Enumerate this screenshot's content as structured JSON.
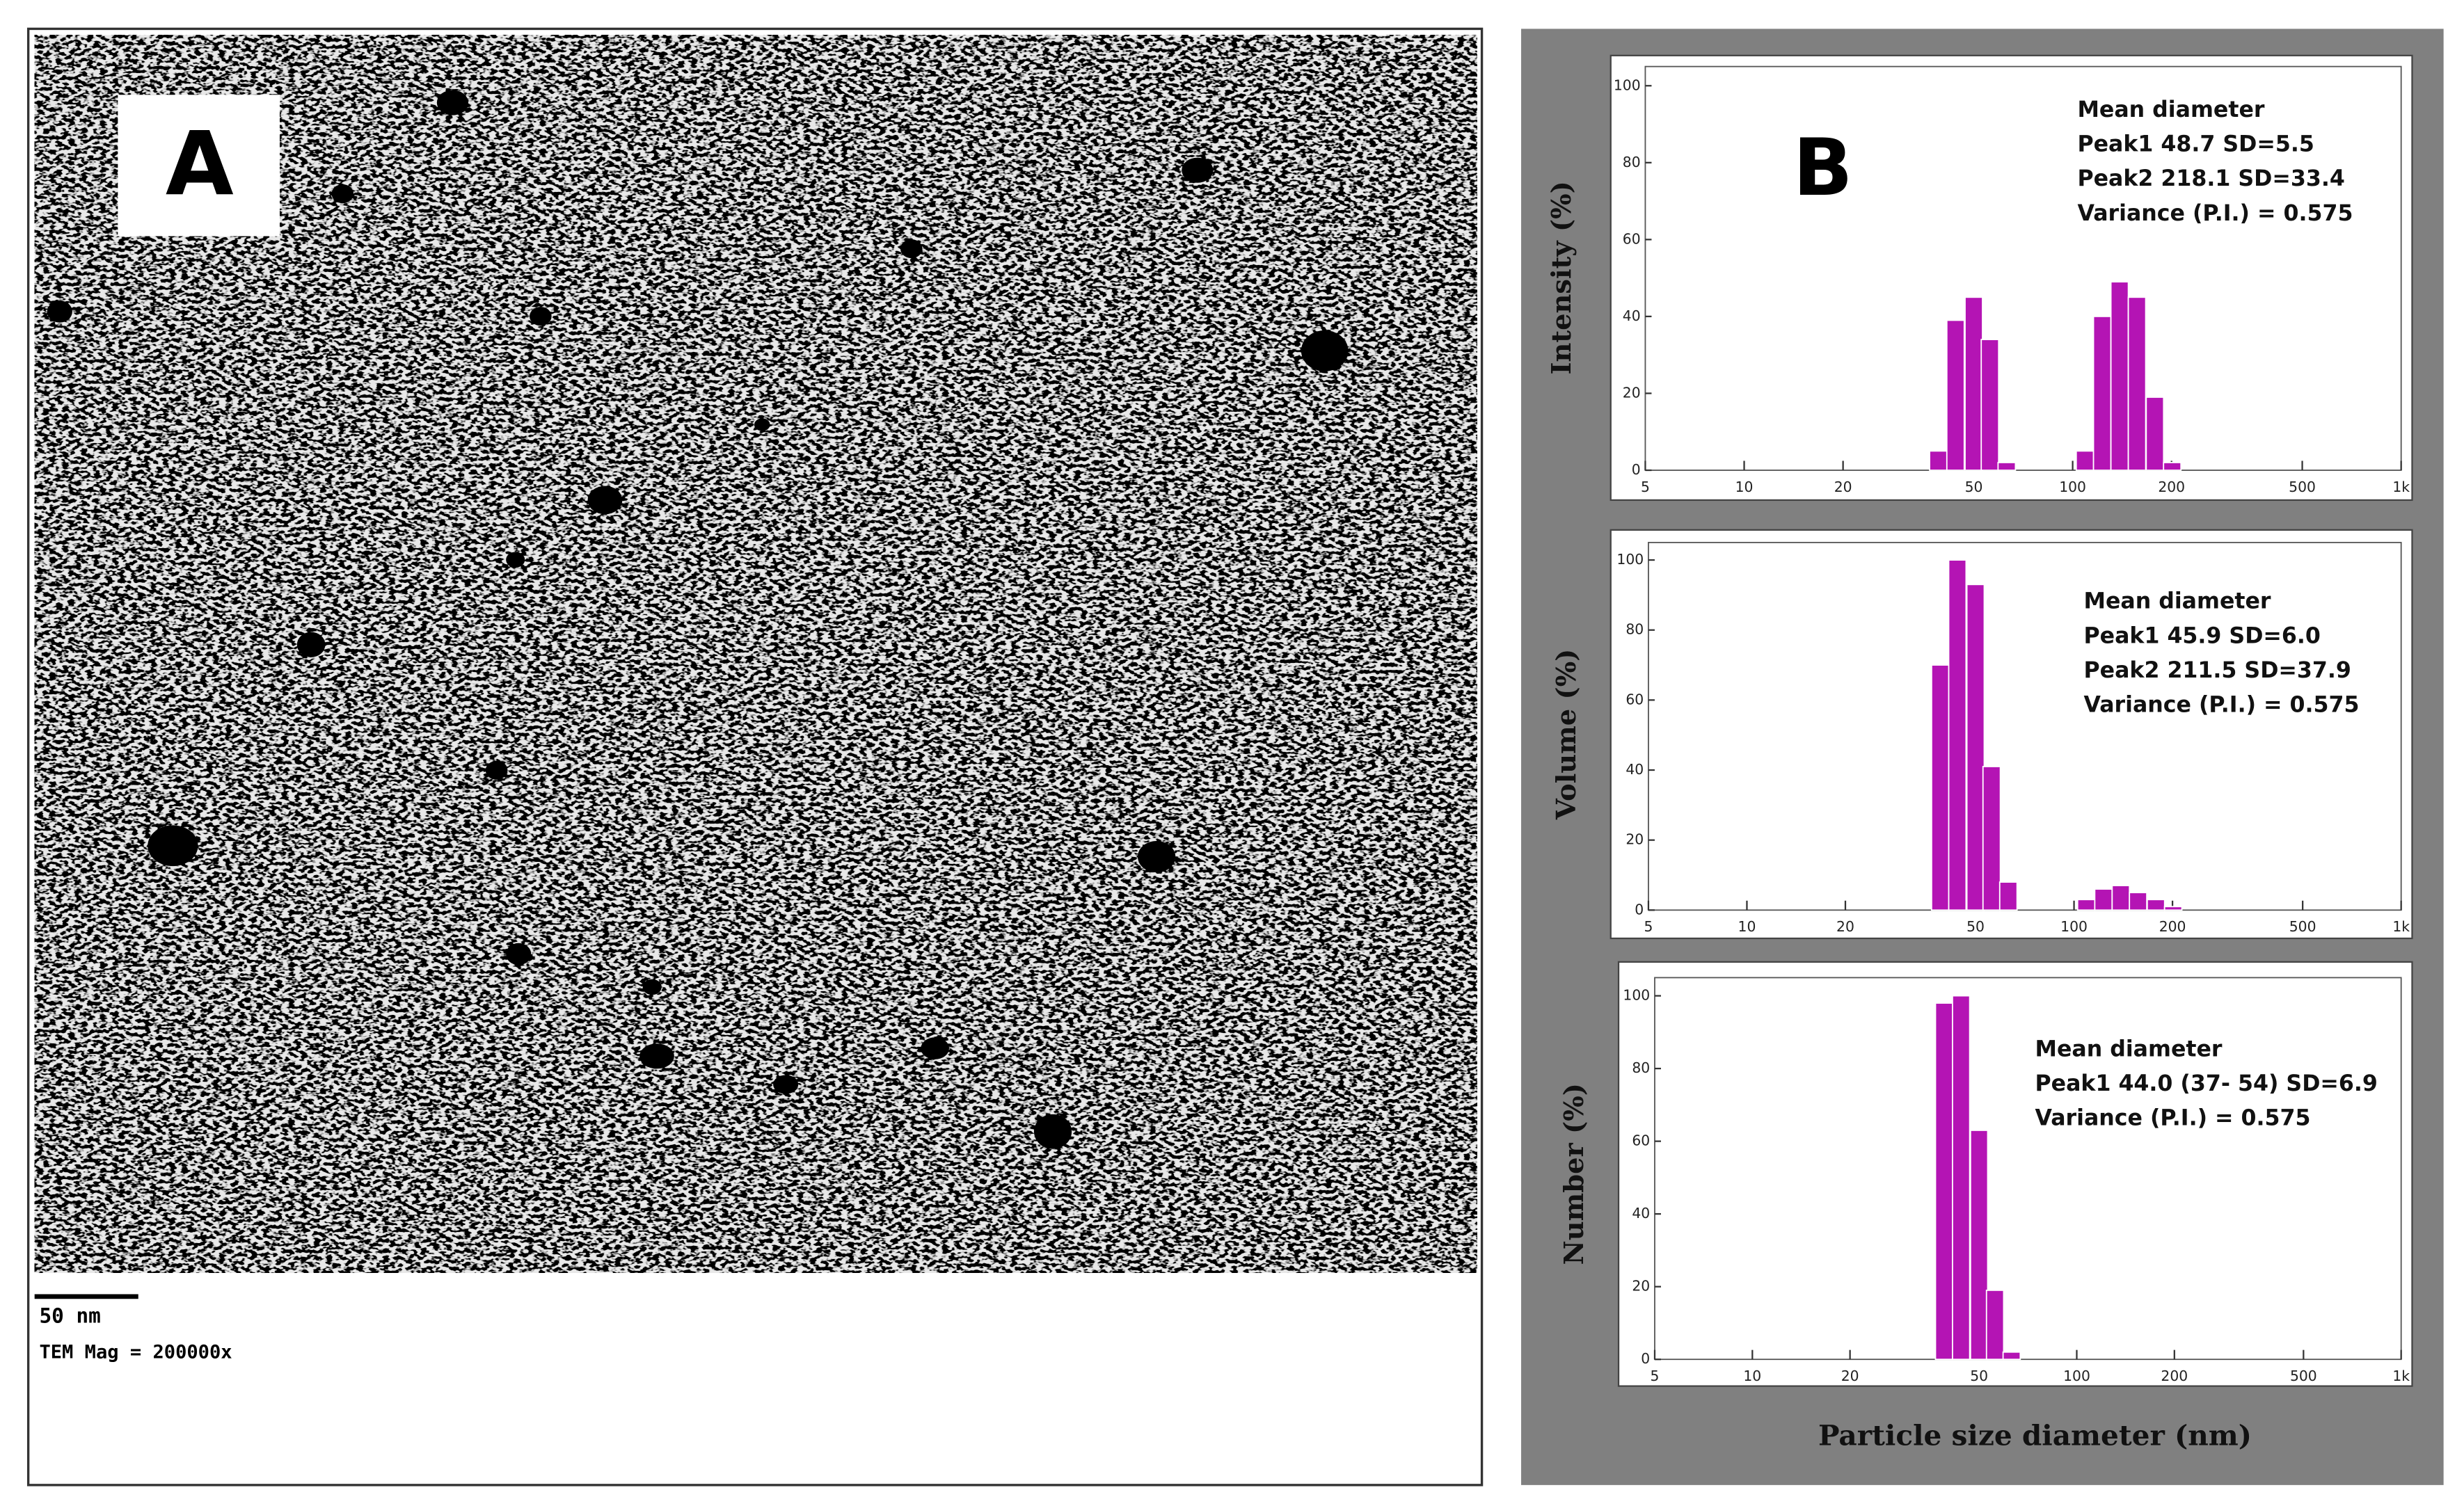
{
  "panel_a": {
    "label": "A",
    "scale_bar": "50 nm",
    "magnification": "TEM Mag = 200000x"
  },
  "panel_b": {
    "label": "B",
    "x_axis_label": "Particle size diameter (nm)"
  },
  "chart_data": [
    {
      "type": "bar",
      "y_axis_label": "Intensity (%)",
      "x_scale": "log",
      "color": "#b414b4",
      "annotations": [
        "Mean diameter",
        "Peak1 48.7 SD=5.5",
        "Peak2 218.1 SD=33.4",
        "Variance (P.I.) = 0.575"
      ],
      "x": [
        39,
        44,
        50,
        56,
        63,
        109,
        123,
        139,
        157,
        178,
        201
      ],
      "values": [
        5,
        39,
        45,
        34,
        2,
        5,
        40,
        49,
        45,
        19,
        2
      ],
      "xlim": [
        5,
        1000
      ],
      "xticks": [
        5,
        10,
        20,
        50,
        100,
        200,
        500,
        {
          "value": 1000,
          "label": "1k"
        }
      ],
      "ylim": [
        0,
        105
      ],
      "yticks": [
        0,
        20,
        40,
        60,
        80,
        100
      ]
    },
    {
      "type": "bar",
      "y_axis_label": "Volume (%)",
      "x_scale": "log",
      "color": "#b414b4",
      "annotations": [
        "Mean diameter",
        "Peak1 45.9 SD=6.0",
        "Peak2 211.5 SD=37.9",
        "Variance (P.I.) = 0.575"
      ],
      "x": [
        39,
        44,
        50,
        56,
        63,
        109,
        123,
        139,
        157,
        178,
        201
      ],
      "values": [
        70,
        100,
        93,
        41,
        8,
        3,
        6,
        7,
        5,
        3,
        1
      ],
      "xlim": [
        5,
        1000
      ],
      "xticks": [
        5,
        10,
        20,
        50,
        100,
        200,
        500,
        {
          "value": 1000,
          "label": "1k"
        }
      ],
      "ylim": [
        0,
        105
      ],
      "yticks": [
        0,
        20,
        40,
        60,
        80,
        100
      ]
    },
    {
      "type": "bar",
      "y_axis_label": "Number (%)",
      "x_scale": "log",
      "color": "#b414b4",
      "annotations": [
        "Mean diameter",
        "Peak1 44.0 (37- 54) SD=6.9",
        "Variance (P.I.) = 0.575"
      ],
      "x": [
        39,
        44,
        50,
        56,
        63
      ],
      "values": [
        98,
        100,
        63,
        19,
        2
      ],
      "xlim": [
        5,
        1000
      ],
      "xticks": [
        5,
        10,
        20,
        50,
        100,
        200,
        500,
        {
          "value": 1000,
          "label": "1k"
        }
      ],
      "ylim": [
        0,
        105
      ],
      "yticks": [
        0,
        20,
        40,
        60,
        80,
        100
      ]
    }
  ]
}
